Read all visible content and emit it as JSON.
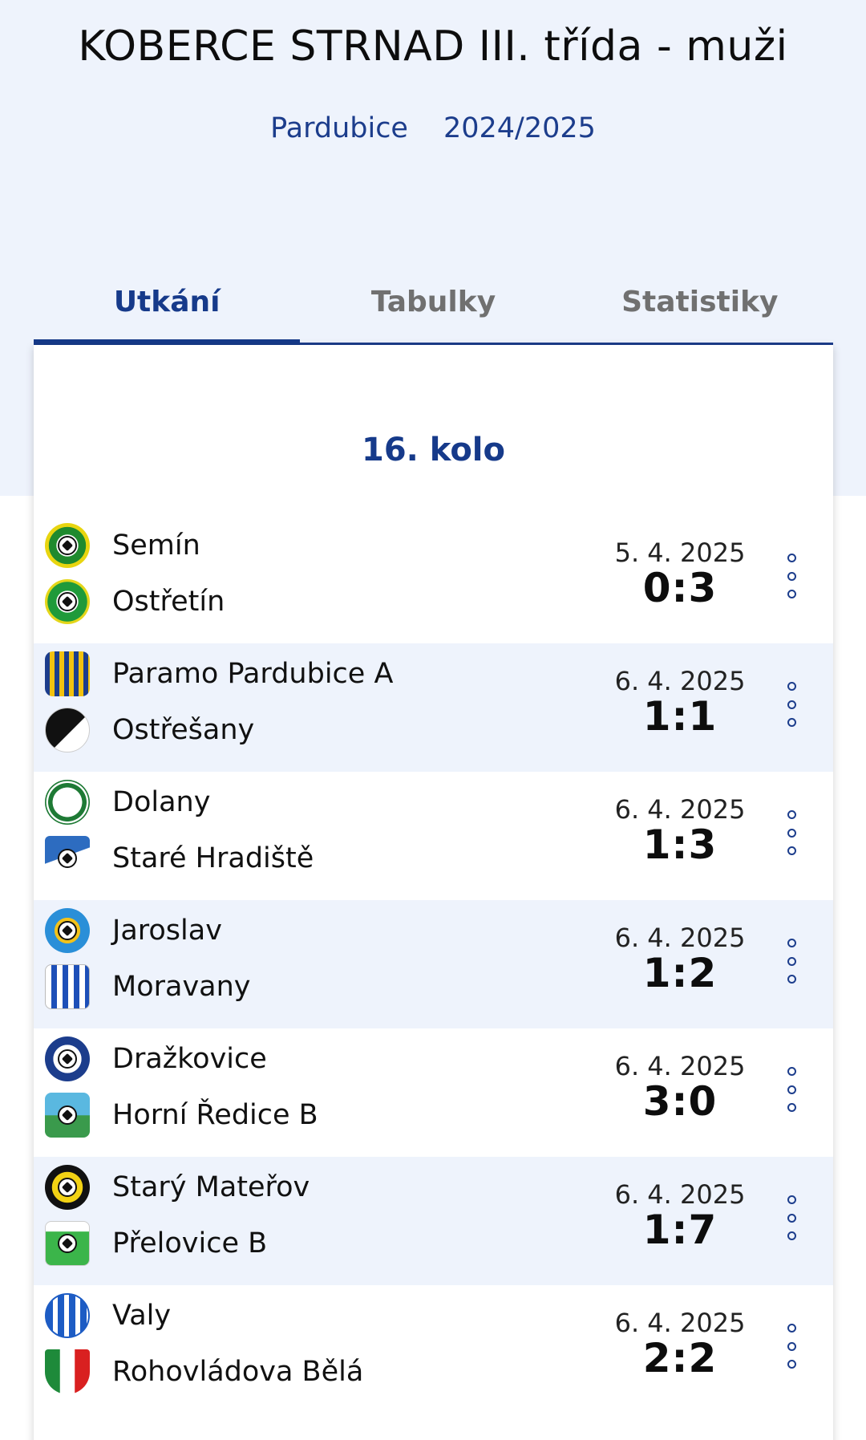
{
  "header": {
    "title": "KOBERCE STRNAD III. třída - muži",
    "region": "Pardubice",
    "season": "2024/2025"
  },
  "tabs": [
    {
      "label": "Utkání",
      "active": true
    },
    {
      "label": "Tabulky",
      "active": false
    },
    {
      "label": "Statistiky",
      "active": false
    }
  ],
  "round": {
    "label": "16. kolo"
  },
  "matches": [
    {
      "home": "Semín",
      "away": "Ostřetín",
      "date": "5. 4. 2025",
      "score": "0:3"
    },
    {
      "home": "Paramo Pardubice A",
      "away": "Ostřešany",
      "date": "6. 4. 2025",
      "score": "1:1"
    },
    {
      "home": "Dolany",
      "away": "Staré Hradiště",
      "date": "6. 4. 2025",
      "score": "1:3"
    },
    {
      "home": "Jaroslav",
      "away": "Moravany",
      "date": "6. 4. 2025",
      "score": "1:2"
    },
    {
      "home": "Dražkovice",
      "away": "Horní Ředice B",
      "date": "6. 4. 2025",
      "score": "3:0"
    },
    {
      "home": "Starý Mateřov",
      "away": "Přelovice B",
      "date": "6. 4. 2025",
      "score": "1:7"
    },
    {
      "home": "Valy",
      "away": "Rohovládova Bělá",
      "date": "6. 4. 2025",
      "score": "2:2"
    }
  ],
  "colors": {
    "accent": "#163a8a",
    "hero_bg": "#eef3fc",
    "alt_row_bg": "#eef3fc"
  }
}
